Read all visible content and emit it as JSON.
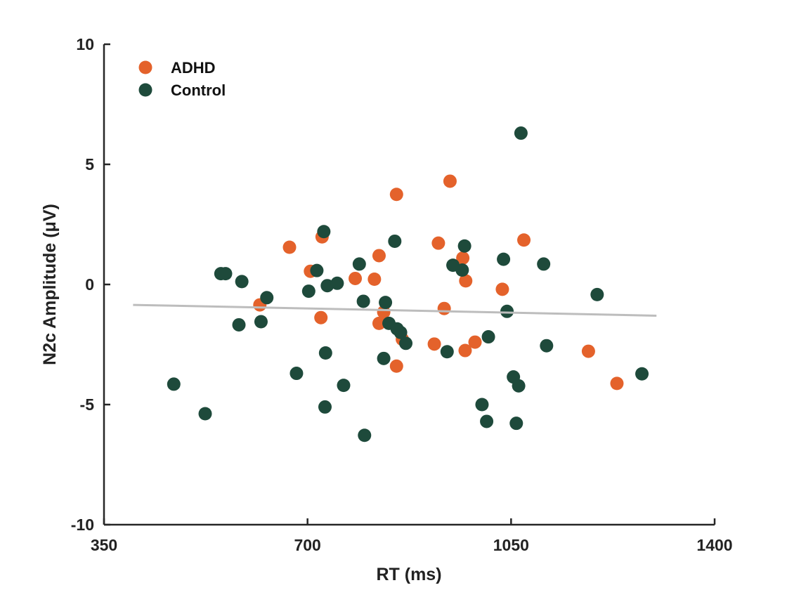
{
  "chart_data": {
    "type": "scatter",
    "xlabel": "RT (ms)",
    "ylabel": "N2c Amplitude (μV)",
    "xlim": [
      350,
      1400
    ],
    "ylim": [
      -10,
      10
    ],
    "xticks": [
      350,
      700,
      1050,
      1400
    ],
    "xtick_labels": [
      "350",
      "700",
      "1050",
      "1400"
    ],
    "yticks": [
      -10,
      -5,
      0,
      5,
      10
    ],
    "ytick_labels": [
      "-10",
      "-5",
      "0",
      "5",
      "10"
    ],
    "legend_position": "top-left",
    "grid": false,
    "series": [
      {
        "name": "ADHD",
        "color": "#E4622B",
        "points": [
          [
            618,
            -0.85
          ],
          [
            669,
            1.55
          ],
          [
            705,
            0.55
          ],
          [
            725,
            1.98
          ],
          [
            723,
            -1.38
          ],
          [
            782,
            0.25
          ],
          [
            815,
            0.22
          ],
          [
            823,
            1.2
          ],
          [
            823,
            -1.62
          ],
          [
            831,
            -1.15
          ],
          [
            853,
            3.75
          ],
          [
            853,
            -3.4
          ],
          [
            863,
            -2.28
          ],
          [
            918,
            -2.48
          ],
          [
            925,
            1.72
          ],
          [
            935,
            -1.0
          ],
          [
            945,
            4.3
          ],
          [
            967,
            1.1
          ],
          [
            971,
            -2.75
          ],
          [
            972,
            0.15
          ],
          [
            988,
            -2.4
          ],
          [
            1035,
            -0.2
          ],
          [
            1072,
            1.85
          ],
          [
            1183,
            -2.78
          ],
          [
            1232,
            -4.12
          ]
        ]
      },
      {
        "name": "Control",
        "color": "#1E4A3B",
        "points": [
          [
            470,
            -4.15
          ],
          [
            524,
            -5.38
          ],
          [
            551,
            0.45
          ],
          [
            559,
            0.45
          ],
          [
            582,
            -1.68
          ],
          [
            587,
            0.12
          ],
          [
            620,
            -1.55
          ],
          [
            630,
            -0.55
          ],
          [
            681,
            -3.7
          ],
          [
            702,
            -0.28
          ],
          [
            716,
            0.58
          ],
          [
            728,
            2.2
          ],
          [
            730,
            -5.1
          ],
          [
            731,
            -2.85
          ],
          [
            734,
            -0.05
          ],
          [
            751,
            0.05
          ],
          [
            762,
            -4.2
          ],
          [
            789,
            0.85
          ],
          [
            796,
            -0.7
          ],
          [
            798,
            -6.28
          ],
          [
            834,
            -0.75
          ],
          [
            840,
            -1.62
          ],
          [
            850,
            1.8
          ],
          [
            831,
            -3.08
          ],
          [
            854,
            -1.85
          ],
          [
            860,
            -2.0
          ],
          [
            869,
            -2.45
          ],
          [
            940,
            -2.8
          ],
          [
            950,
            0.8
          ],
          [
            966,
            0.6
          ],
          [
            970,
            1.6
          ],
          [
            1000,
            -5.0
          ],
          [
            1008,
            -5.7
          ],
          [
            1011,
            -2.18
          ],
          [
            1037,
            1.05
          ],
          [
            1043,
            -1.12
          ],
          [
            1054,
            -3.85
          ],
          [
            1059,
            -5.78
          ],
          [
            1063,
            -4.22
          ],
          [
            1067,
            6.3
          ],
          [
            1106,
            0.85
          ],
          [
            1111,
            -2.55
          ],
          [
            1198,
            -0.42
          ],
          [
            1275,
            -3.72
          ]
        ]
      }
    ],
    "trendline": {
      "color": "#BDBDBD",
      "x": [
        400,
        1300
      ],
      "y": [
        -0.85,
        -1.3
      ]
    }
  }
}
